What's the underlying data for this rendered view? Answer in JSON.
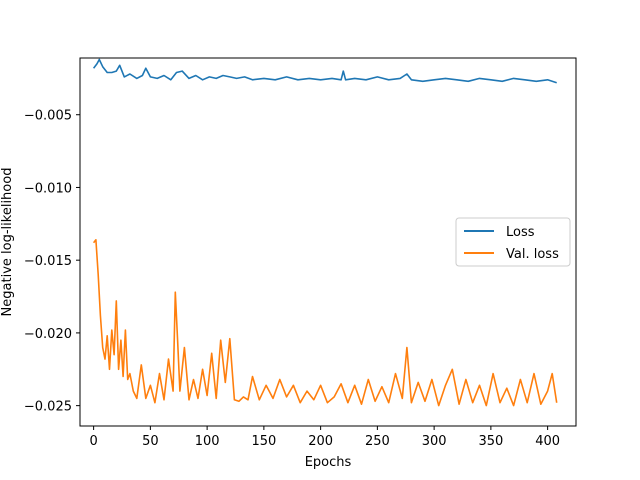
{
  "chart_data": {
    "type": "line",
    "xlabel": "Epochs",
    "ylabel": "Negative log-likelihood",
    "xlim": [
      -12,
      425
    ],
    "ylim": [
      -0.0264,
      -0.0011
    ],
    "xticks": [
      0,
      50,
      100,
      150,
      200,
      250,
      300,
      350,
      400
    ],
    "yticks": [
      -0.025,
      -0.02,
      -0.015,
      -0.01,
      -0.005
    ],
    "ytick_labels": [
      "−0.025",
      "−0.020",
      "−0.015",
      "−0.010",
      "−0.005"
    ],
    "grid": false,
    "legend_position": "center-right",
    "series": [
      {
        "name": "Loss",
        "color": "#1f77b4",
        "x": [
          0,
          3,
          5,
          8,
          12,
          16,
          20,
          23,
          27,
          32,
          38,
          43,
          46,
          50,
          56,
          62,
          68,
          73,
          78,
          84,
          90,
          96,
          102,
          108,
          114,
          120,
          126,
          133,
          140,
          150,
          160,
          170,
          180,
          190,
          200,
          210,
          218,
          220,
          222,
          230,
          240,
          250,
          260,
          270,
          276,
          280,
          290,
          300,
          310,
          320,
          330,
          340,
          350,
          360,
          370,
          380,
          390,
          400,
          408
        ],
        "y": [
          -0.0018,
          -0.0015,
          -0.0012,
          -0.0017,
          -0.0021,
          -0.0021,
          -0.002,
          -0.0016,
          -0.0024,
          -0.0022,
          -0.0025,
          -0.0023,
          -0.0018,
          -0.0024,
          -0.0025,
          -0.0023,
          -0.0026,
          -0.0021,
          -0.002,
          -0.0025,
          -0.0023,
          -0.0026,
          -0.0024,
          -0.0025,
          -0.0023,
          -0.0024,
          -0.0025,
          -0.0024,
          -0.0026,
          -0.0025,
          -0.0026,
          -0.0024,
          -0.0026,
          -0.0025,
          -0.0026,
          -0.0025,
          -0.0026,
          -0.002,
          -0.0026,
          -0.0025,
          -0.0026,
          -0.0024,
          -0.0026,
          -0.0025,
          -0.0022,
          -0.0026,
          -0.0027,
          -0.0026,
          -0.0025,
          -0.0026,
          -0.0027,
          -0.0025,
          -0.0026,
          -0.0027,
          -0.0025,
          -0.0026,
          -0.0027,
          -0.0026,
          -0.0028
        ]
      },
      {
        "name": "Val. loss",
        "color": "#ff7f0e",
        "x": [
          0,
          2,
          4,
          6,
          8,
          10,
          12,
          14,
          16,
          18,
          20,
          22,
          24,
          26,
          28,
          30,
          32,
          35,
          38,
          42,
          46,
          50,
          54,
          58,
          62,
          66,
          70,
          72,
          74,
          76,
          80,
          84,
          88,
          92,
          96,
          100,
          104,
          108,
          112,
          116,
          120,
          124,
          128,
          132,
          136,
          140,
          146,
          152,
          158,
          164,
          170,
          176,
          182,
          188,
          194,
          200,
          206,
          212,
          218,
          224,
          230,
          236,
          242,
          248,
          254,
          260,
          266,
          272,
          276,
          280,
          286,
          292,
          298,
          304,
          310,
          316,
          322,
          328,
          334,
          340,
          346,
          352,
          358,
          364,
          370,
          376,
          382,
          388,
          394,
          400,
          404,
          408
        ],
        "y": [
          -0.0138,
          -0.0136,
          -0.016,
          -0.0188,
          -0.021,
          -0.0218,
          -0.0202,
          -0.0225,
          -0.0198,
          -0.0215,
          -0.0178,
          -0.0225,
          -0.0205,
          -0.023,
          -0.0198,
          -0.0232,
          -0.0228,
          -0.024,
          -0.0245,
          -0.0222,
          -0.0245,
          -0.0236,
          -0.0248,
          -0.0228,
          -0.0246,
          -0.0218,
          -0.024,
          -0.0172,
          -0.0205,
          -0.024,
          -0.021,
          -0.0246,
          -0.0232,
          -0.0245,
          -0.0225,
          -0.0243,
          -0.0214,
          -0.0245,
          -0.0205,
          -0.0234,
          -0.0204,
          -0.0246,
          -0.0247,
          -0.0244,
          -0.0246,
          -0.023,
          -0.0246,
          -0.0236,
          -0.0245,
          -0.0232,
          -0.0244,
          -0.0236,
          -0.0248,
          -0.024,
          -0.0246,
          -0.0236,
          -0.0248,
          -0.0244,
          -0.0235,
          -0.0248,
          -0.0236,
          -0.0249,
          -0.0232,
          -0.0247,
          -0.0237,
          -0.0248,
          -0.0228,
          -0.0245,
          -0.021,
          -0.0248,
          -0.0234,
          -0.0247,
          -0.0232,
          -0.025,
          -0.0236,
          -0.0225,
          -0.0249,
          -0.0232,
          -0.0248,
          -0.0236,
          -0.025,
          -0.0228,
          -0.0248,
          -0.0238,
          -0.025,
          -0.0232,
          -0.0248,
          -0.0228,
          -0.0249,
          -0.024,
          -0.0228,
          -0.0248
        ]
      }
    ]
  }
}
